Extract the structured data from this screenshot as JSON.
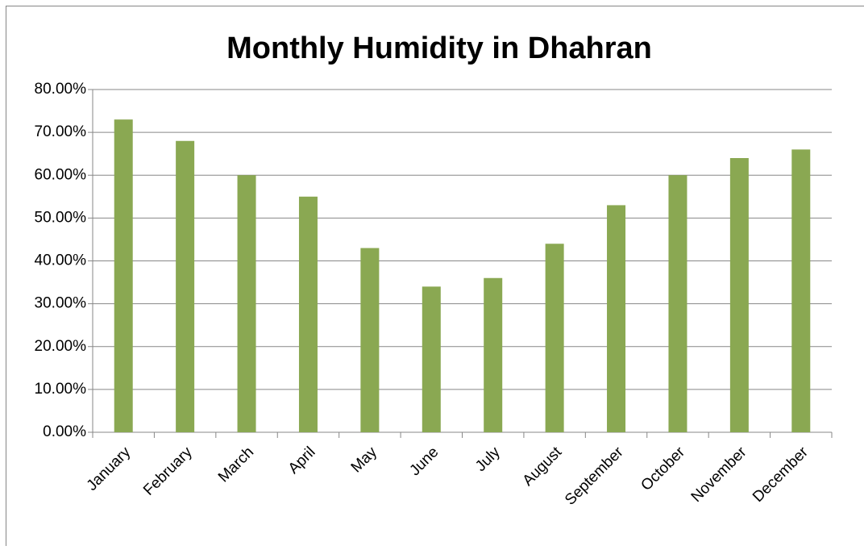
{
  "chart_data": {
    "type": "bar",
    "title": "Monthly Humidity in Dhahran",
    "categories": [
      "January",
      "February",
      "March",
      "April",
      "May",
      "June",
      "July",
      "August",
      "September",
      "October",
      "November",
      "December"
    ],
    "values": [
      73,
      68,
      60,
      55,
      43,
      34,
      36,
      44,
      53,
      60,
      64,
      66
    ],
    "color": "#8aa852",
    "ylim": [
      0,
      80
    ],
    "yticks": [
      {
        "value": 0,
        "label": "0.00%"
      },
      {
        "value": 10,
        "label": "10.00%"
      },
      {
        "value": 20,
        "label": "20.00%"
      },
      {
        "value": 30,
        "label": "30.00%"
      },
      {
        "value": 40,
        "label": "40.00%"
      },
      {
        "value": 50,
        "label": "50.00%"
      },
      {
        "value": 60,
        "label": "60.00%"
      },
      {
        "value": 70,
        "label": "70.00%"
      },
      {
        "value": 80,
        "label": "80.00%"
      }
    ],
    "grid": true
  }
}
